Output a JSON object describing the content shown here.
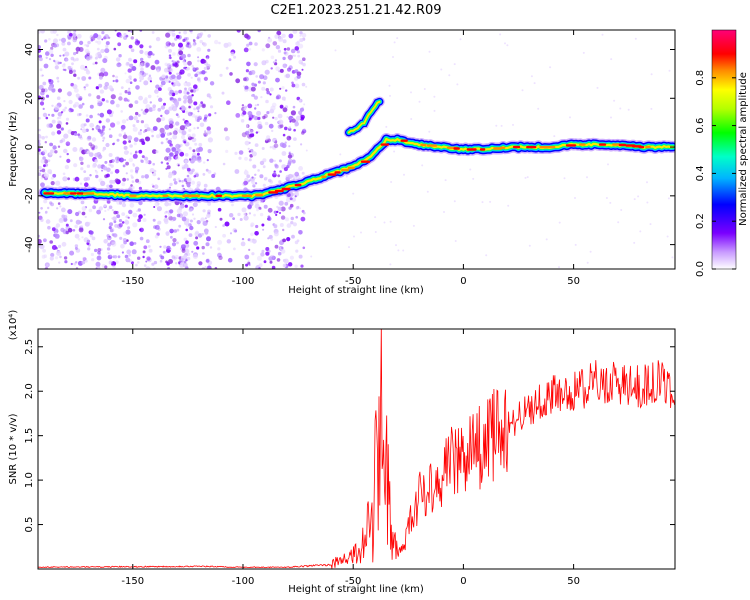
{
  "title": "C2E1.2023.251.21.42.R09",
  "chart_data": [
    {
      "type": "heatmap",
      "xlabel": "Height of straight line (km)",
      "ylabel": "Frequency (Hz)",
      "xlim": [
        -193,
        96
      ],
      "ylim": [
        -50,
        48
      ],
      "x_ticks": [
        -150,
        -100,
        -50,
        0,
        50
      ],
      "y_ticks": [
        -40,
        -20,
        0,
        20,
        40
      ],
      "grid": false,
      "colorbar": {
        "label": "Normalized spectral amplitude",
        "range": [
          0,
          1
        ],
        "ticks": [
          "0.0",
          "0.2",
          "0.4",
          "0.6",
          "0.8"
        ],
        "colormap": "rainbow (white-purple-blue-cyan-green-yellow-red-magenta)"
      },
      "ridge": {
        "x": [
          -190,
          -170,
          -150,
          -130,
          -110,
          -95,
          -85,
          -70,
          -60,
          -50,
          -42,
          -38,
          -35,
          -30,
          -20,
          -10,
          0,
          10,
          20,
          30,
          40,
          50,
          60,
          70,
          80,
          90,
          95
        ],
        "y": [
          -19,
          -19,
          -20,
          -20,
          -20,
          -20,
          -18,
          -14,
          -11,
          -8,
          -4,
          0,
          3,
          3,
          1,
          0,
          -1,
          -1,
          0,
          0,
          0,
          1,
          1,
          1,
          0,
          0,
          0
        ]
      },
      "upper_branch": {
        "x": [
          -52,
          -48,
          -45,
          -43,
          -40,
          -38
        ],
        "y": [
          6,
          8,
          10,
          13,
          17,
          19
        ]
      },
      "noise_region_x": [
        -193,
        -80
      ],
      "colors": {
        "noise": "#8a2be2",
        "band_edge": "#0000ff",
        "band_core": "#ff0000"
      }
    },
    {
      "type": "line",
      "xlabel": "Height of straight line (km)",
      "ylabel": "SNR (10 * v/v)",
      "y_multiplier": "(x10⁴)",
      "xlim": [
        -193,
        96
      ],
      "ylim": [
        0,
        27000
      ],
      "x_ticks": [
        -150,
        -100,
        -50,
        0,
        50
      ],
      "y_ticks": [
        "0.5",
        "1.0",
        "1.5",
        "2.0",
        "2.5"
      ],
      "grid": false,
      "series": [
        {
          "color": "#ff0000",
          "envelope_x": [
            -193,
            -120,
            -100,
            -80,
            -60,
            -50,
            -45,
            -42,
            -40,
            -38,
            -37,
            -36,
            -35,
            -33,
            -30,
            -27,
            -25,
            -22,
            -20,
            -18,
            -15,
            -10,
            -5,
            0,
            5,
            10,
            15,
            20,
            25,
            30,
            35,
            40,
            45,
            50,
            55,
            60,
            65,
            70,
            75,
            80,
            85,
            90,
            96
          ],
          "envelope_y": [
            200,
            300,
            200,
            200,
            500,
            1500,
            3000,
            5000,
            9000,
            16000,
            22000,
            18000,
            12000,
            4000,
            1500,
            2500,
            5000,
            6000,
            9000,
            8500,
            9500,
            10500,
            12000,
            13000,
            13500,
            14000,
            15500,
            16000,
            17000,
            18000,
            19000,
            19500,
            19500,
            20000,
            20500,
            21000,
            21000,
            21000,
            20500,
            20500,
            21000,
            21000,
            20000
          ]
        }
      ]
    }
  ]
}
